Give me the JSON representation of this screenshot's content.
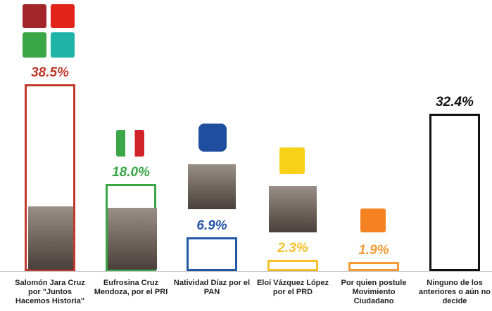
{
  "chart_data": {
    "type": "bar",
    "categories": [
      "Salomón Jara Cruz por \"Juntos Hacemos Historia\"",
      "Eufrosina Cruz Mendoza, por el PRI",
      "Natividad Díaz por el PAN",
      "Eloí Vázquez López por el PRD",
      "Por quien postule Movimiento Ciudadano",
      "Ninguno de los anteriores o aún no decide"
    ],
    "values": [
      38.5,
      18.0,
      6.9,
      2.3,
      1.9,
      32.4
    ],
    "value_labels": [
      "38.5%",
      "18.0%",
      "6.9%",
      "2.3%",
      "1.9%",
      "32.4%"
    ],
    "colors": [
      "#c0392b",
      "#3aa646",
      "#2456a6",
      "#f5c02a",
      "#f39c35",
      "#111111"
    ]
  }
}
